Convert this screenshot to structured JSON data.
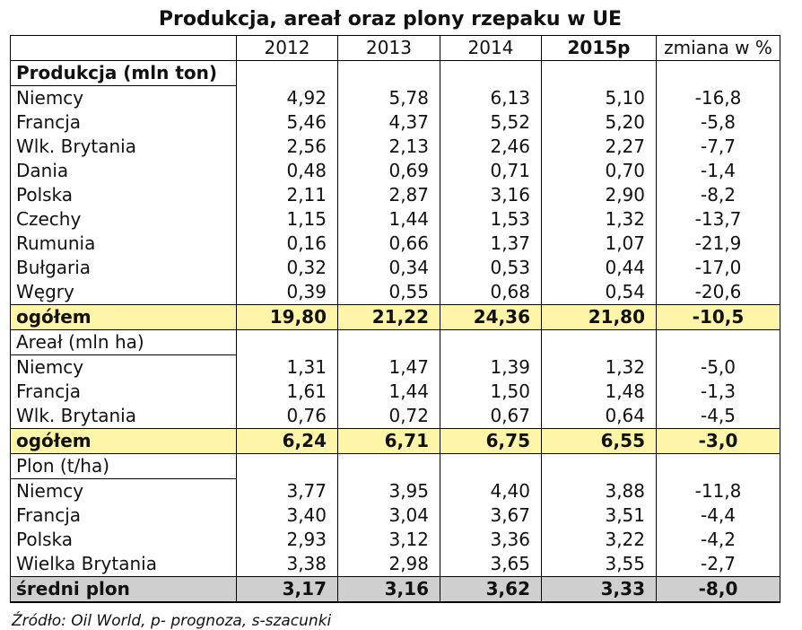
{
  "title": "Produkcja, areał oraz plony rzepaku w UE",
  "columns": [
    "2012",
    "2013",
    "2014",
    "2015p",
    "zmiana w %"
  ],
  "sections": [
    {
      "label": "Produkcja (mln ton)",
      "rows": [
        {
          "name": "Niemcy",
          "v2012": "4,92",
          "v2013": "5,78",
          "v2014": "6,13",
          "v2015": "5,10",
          "change": "-16,8"
        },
        {
          "name": "Francja",
          "v2012": "5,46",
          "v2013": "4,37",
          "v2014": "5,52",
          "v2015": "5,20",
          "change": "-5,8"
        },
        {
          "name": "Wlk. Brytania",
          "v2012": "2,56",
          "v2013": "2,13",
          "v2014": "2,46",
          "v2015": "2,27",
          "change": "-7,7"
        },
        {
          "name": "Dania",
          "v2012": "0,48",
          "v2013": "0,69",
          "v2014": "0,71",
          "v2015": "0,70",
          "change": "-1,4"
        },
        {
          "name": "Polska",
          "v2012": "2,11",
          "v2013": "2,87",
          "v2014": "3,16",
          "v2015": "2,90",
          "change": "-8,2"
        },
        {
          "name": "Czechy",
          "v2012": "1,15",
          "v2013": "1,44",
          "v2014": "1,53",
          "v2015": "1,32",
          "change": "-13,7"
        },
        {
          "name": "Rumunia",
          "v2012": "0,16",
          "v2013": "0,66",
          "v2014": "1,37",
          "v2015": "1,07",
          "change": "-21,9"
        },
        {
          "name": "Bułgaria",
          "v2012": "0,32",
          "v2013": "0,34",
          "v2014": "0,53",
          "v2015": "0,44",
          "change": "-17,0"
        },
        {
          "name": "Węgry",
          "v2012": "0,39",
          "v2013": "0,55",
          "v2014": "0,68",
          "v2015": "0,54",
          "change": "-20,6"
        }
      ],
      "total": {
        "name": "ogółem",
        "v2012": "19,80",
        "v2013": "21,22",
        "v2014": "24,36",
        "v2015": "21,80",
        "change": "-10,5"
      }
    },
    {
      "label": "Areał (mln ha)",
      "rows": [
        {
          "name": "Niemcy",
          "v2012": "1,31",
          "v2013": "1,47",
          "v2014": "1,39",
          "v2015": "1,32",
          "change": "-5,0"
        },
        {
          "name": "Francja",
          "v2012": "1,61",
          "v2013": "1,44",
          "v2014": "1,50",
          "v2015": "1,48",
          "change": "-1,3"
        },
        {
          "name": "Wlk. Brytania",
          "v2012": "0,76",
          "v2013": "0,72",
          "v2014": "0,67",
          "v2015": "0,64",
          "change": "-4,5"
        }
      ],
      "total": {
        "name": "ogółem",
        "v2012": "6,24",
        "v2013": "6,71",
        "v2014": "6,75",
        "v2015": "6,55",
        "change": "-3,0"
      }
    },
    {
      "label": "Plon (t/ha)",
      "rows": [
        {
          "name": "Niemcy",
          "v2012": "3,77",
          "v2013": "3,95",
          "v2014": "4,40",
          "v2015": "3,88",
          "change": "-11,8"
        },
        {
          "name": "Francja",
          "v2012": "3,40",
          "v2013": "3,04",
          "v2014": "3,67",
          "v2015": "3,51",
          "change": "-4,4"
        },
        {
          "name": "Polska",
          "v2012": "2,93",
          "v2013": "3,12",
          "v2014": "3,36",
          "v2015": "3,22",
          "change": "-4,2"
        },
        {
          "name": "Wielka Brytania",
          "v2012": "3,38",
          "v2013": "2,98",
          "v2014": "3,65",
          "v2015": "3,55",
          "change": "-2,7"
        }
      ],
      "total": {
        "name": "średni plon",
        "v2012": "3,17",
        "v2013": "3,16",
        "v2014": "3,62",
        "v2015": "3,33",
        "change": "-8,0"
      }
    }
  ],
  "source": "Źródło: Oil World, p- prognoza, s-szacunki",
  "colors": {
    "total_highlight": "#fff5a8",
    "average_highlight": "#cfcfcf",
    "border": "#000000"
  }
}
